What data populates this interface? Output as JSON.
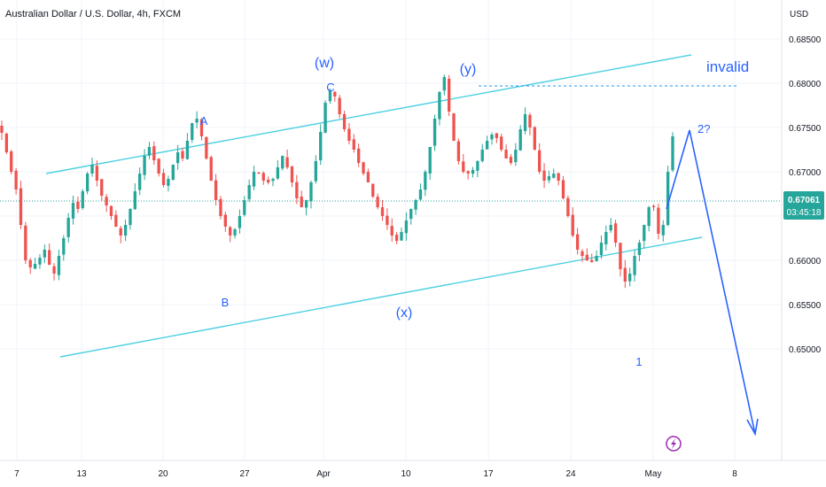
{
  "header": {
    "title": "Australian Dollar / U.S. Dollar, 4h, FXCM"
  },
  "axis": {
    "currency": "USD",
    "y_ticks": [
      "0.68500",
      "0.68000",
      "0.67500",
      "0.67000",
      "0.66500",
      "0.66000",
      "0.65500",
      "0.65000"
    ],
    "x_ticks": [
      "7",
      "13",
      "20",
      "27",
      "Apr",
      "10",
      "17",
      "24",
      "May",
      "8"
    ]
  },
  "current_price": {
    "value": "0.67061",
    "countdown": "03:45:18"
  },
  "annotations": {
    "w": "(w)",
    "c": "C",
    "a": "A",
    "b": "B",
    "x": "(x)",
    "y": "(y)",
    "invalid": "invalid",
    "two": "2?",
    "one": "1"
  },
  "colors": {
    "up": "#26a69a",
    "down": "#ef5350",
    "channel": "#4dd0e1",
    "label": "#2962ff",
    "price_tag": "#26a69a",
    "grid": "#f0f3fa",
    "axis_text": "#131722",
    "event_icon": "#9c27b0"
  },
  "chart_data": {
    "type": "candlestick",
    "symbol": "AUDUSD",
    "timeframe": "4h",
    "ylim": [
      0.6482,
      0.6868
    ],
    "grid": true,
    "current_price": 0.67061,
    "key_points": [
      {
        "label": "A",
        "price": 0.676
      },
      {
        "label": "B",
        "price": 0.6628
      },
      {
        "label": "C",
        "price": 0.6792
      },
      {
        "label": "(x)",
        "price": 0.6622
      },
      {
        "label": "(y)",
        "price": 0.6807
      },
      {
        "label": "1",
        "price": 0.6576
      },
      {
        "label": "2?",
        "price": 0.677
      }
    ],
    "series": [
      {
        "name": "",
        "values": [
          0.6744,
          0.6722,
          0.67,
          0.668,
          0.664,
          0.66,
          0.6592,
          0.6596,
          0.6603,
          0.6612,
          0.6595,
          0.6585,
          0.6605,
          0.6625,
          0.6648,
          0.6665,
          0.6658,
          0.6678,
          0.6698,
          0.6708,
          0.669,
          0.6673,
          0.6662,
          0.665,
          0.6638,
          0.6628,
          0.664,
          0.6658,
          0.6678,
          0.6698,
          0.6718,
          0.6728,
          0.6713,
          0.6698,
          0.6685,
          0.6692,
          0.6708,
          0.6722,
          0.6715,
          0.6735,
          0.6755,
          0.676,
          0.674,
          0.6715,
          0.669,
          0.6668,
          0.665,
          0.6638,
          0.6628,
          0.6635,
          0.665,
          0.6668,
          0.6685,
          0.67,
          0.6698,
          0.669,
          0.6688,
          0.6692,
          0.6705,
          0.6718,
          0.6705,
          0.6688,
          0.667,
          0.666,
          0.6668,
          0.6688,
          0.6712,
          0.6745,
          0.6778,
          0.6792,
          0.6785,
          0.6765,
          0.6748,
          0.6735,
          0.6725,
          0.671,
          0.6698,
          0.6688,
          0.6672,
          0.666,
          0.665,
          0.664,
          0.6628,
          0.6622,
          0.6632,
          0.6645,
          0.6658,
          0.6668,
          0.668,
          0.67,
          0.6728,
          0.676,
          0.679,
          0.6807,
          0.6768,
          0.6735,
          0.6712,
          0.67,
          0.6698,
          0.6702,
          0.6712,
          0.6725,
          0.6735,
          0.6742,
          0.6738,
          0.6725,
          0.6715,
          0.671,
          0.6725,
          0.6748,
          0.6765,
          0.675,
          0.6725,
          0.67,
          0.669,
          0.6695,
          0.6698,
          0.669,
          0.667,
          0.665,
          0.6628,
          0.6612,
          0.6605,
          0.66,
          0.6598,
          0.6605,
          0.662,
          0.6632,
          0.664,
          0.662,
          0.659,
          0.6576,
          0.6585,
          0.6605,
          0.662,
          0.664,
          0.666,
          0.666,
          0.663,
          0.664,
          0.67,
          0.674
        ]
      }
    ],
    "channel_upper": {
      "start_price": 0.6729,
      "end_price": 0.6838
    },
    "channel_lower": {
      "start_price": 0.6565,
      "end_price": 0.6673
    },
    "invalidation_level": 0.6807,
    "projection": [
      0.67061,
      0.677,
      0.6493
    ]
  }
}
